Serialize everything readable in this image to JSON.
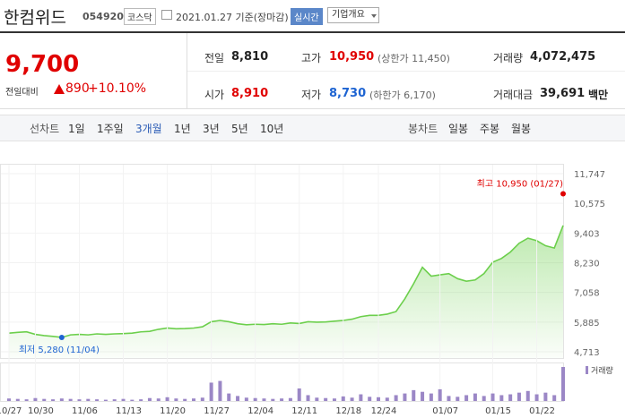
{
  "header": {
    "title": "한컴위드",
    "code": "054920",
    "market": "코스닥",
    "date": "2021.01.27 기준(장마감)",
    "realtime": "실시간",
    "company_button": "기업개요"
  },
  "quote": {
    "price": "9,700",
    "change_label": "전일대비",
    "change": "890",
    "change_rate": "+10.10%"
  },
  "stats": [
    {
      "label": "전일",
      "value": "8,810"
    },
    {
      "label": "고가",
      "value": "10,950",
      "note": "(상한가 11,450)"
    },
    {
      "label": "거래량",
      "value": "4,072,475"
    },
    {
      "label": "시가",
      "value": "8,910"
    },
    {
      "label": "저가",
      "value": "8,730",
      "note": "(하한가 6,170)"
    },
    {
      "label": "거래대금",
      "value": "39,691",
      "unit": "백만"
    }
  ],
  "tabs": {
    "line_label": "선차트",
    "line_periods": [
      "1일",
      "1주일",
      "3개월",
      "1년",
      "3년",
      "5년",
      "10년"
    ],
    "active": "3개월",
    "candle_label": "봉차트",
    "candle_periods": [
      "일봉",
      "주봉",
      "월봉"
    ]
  },
  "chart_data": {
    "type": "line",
    "color": "#6ccf4c",
    "categories": [
      "10/27",
      null,
      null,
      "10/30",
      null,
      null,
      null,
      null,
      "11/06",
      null,
      null,
      null,
      null,
      "11/13",
      null,
      null,
      null,
      null,
      "11/20",
      null,
      null,
      null,
      null,
      "11/27",
      null,
      null,
      null,
      null,
      "12/04",
      null,
      null,
      null,
      null,
      "12/11",
      null,
      null,
      null,
      null,
      "12/18",
      null,
      null,
      null,
      "12/24",
      null,
      null,
      null,
      null,
      null,
      null,
      "01/07",
      null,
      null,
      null,
      null,
      null,
      "01/15",
      null,
      null,
      null,
      null,
      "01/22",
      null,
      null,
      null
    ],
    "values": [
      5450,
      5480,
      5500,
      5400,
      5350,
      5320,
      5280,
      5380,
      5400,
      5380,
      5420,
      5400,
      5420,
      5430,
      5450,
      5500,
      5520,
      5600,
      5650,
      5620,
      5630,
      5650,
      5700,
      5900,
      5950,
      5900,
      5820,
      5780,
      5800,
      5790,
      5820,
      5800,
      5850,
      5830,
      5900,
      5880,
      5890,
      5920,
      5950,
      6000,
      6100,
      6150,
      6150,
      6200,
      6300,
      6800,
      7400,
      8050,
      7700,
      7750,
      7800,
      7600,
      7500,
      7550,
      7800,
      8250,
      8400,
      8650,
      9000,
      9200,
      9100,
      8900,
      8810,
      9700
    ],
    "ylim": [
      4713,
      11747
    ],
    "yticks": [
      {
        "value": 4713,
        "label": "4,713"
      },
      {
        "value": 5885,
        "label": "5,885"
      },
      {
        "value": 7058,
        "label": "7,058"
      },
      {
        "value": 8230,
        "label": "8,230"
      },
      {
        "value": 9403,
        "label": "9,403"
      },
      {
        "value": 10575,
        "label": "10,575"
      },
      {
        "value": 11747,
        "label": "11,747"
      }
    ],
    "annotations": [
      {
        "text": "최고 10,950 (01/27)",
        "value": 10950,
        "color": "#e00000"
      },
      {
        "text": "최저 5,280 (11/04)",
        "value": 5280,
        "color": "#1e64d2"
      }
    ],
    "volume": {
      "name": "거래량",
      "color": "#9b87c6",
      "vlim": [
        0,
        4500000
      ],
      "values": [
        300000,
        250000,
        200000,
        350000,
        250000,
        200000,
        300000,
        250000,
        200000,
        250000,
        200000,
        150000,
        200000,
        250000,
        150000,
        200000,
        350000,
        300000,
        450000,
        300000,
        250000,
        300000,
        400000,
        2200000,
        2400000,
        900000,
        600000,
        400000,
        350000,
        300000,
        250000,
        300000,
        350000,
        1500000,
        700000,
        400000,
        350000,
        300000,
        550000,
        400000,
        800000,
        500000,
        450000,
        400000,
        700000,
        900000,
        1300000,
        1100000,
        900000,
        1400000,
        600000,
        500000,
        700000,
        900000,
        600000,
        900000,
        700000,
        800000,
        1000000,
        1200000,
        800000,
        1000000,
        700000,
        4072475
      ]
    }
  }
}
